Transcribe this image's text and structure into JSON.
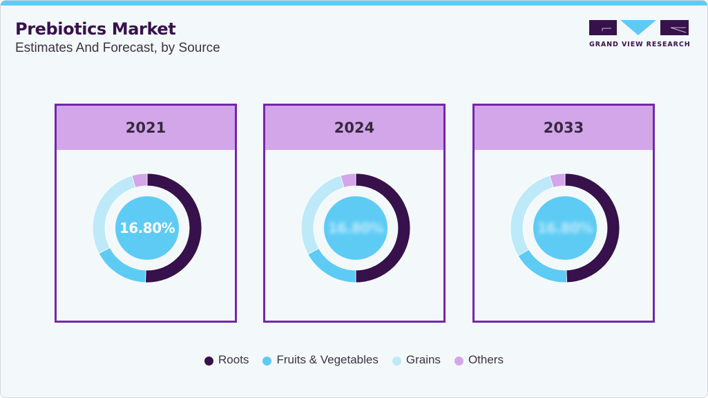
{
  "header": {
    "title": "Prebiotics Market",
    "subtitle": "Estimates And Forecast, by Source"
  },
  "logo": {
    "text": "GRAND VIEW RESEARCH",
    "colors": {
      "dark": "#37114b",
      "accent": "#5ecbf5"
    }
  },
  "colors": {
    "topbar": "#5ecbf5",
    "card_border": "#7327a8",
    "card_header": "#d3a6ea",
    "roots": "#37114b",
    "fruits_vegetables": "#5ecbf5",
    "grains": "#bde9f8",
    "others": "#d3a6ea",
    "center": "#5ecbf5"
  },
  "cards": [
    {
      "year": "2021",
      "center_label": "16.80%",
      "center_visible": true
    },
    {
      "year": "2024",
      "center_label": "16.80%",
      "center_visible": false
    },
    {
      "year": "2033",
      "center_label": "16.80%",
      "center_visible": false
    }
  ],
  "legend": [
    {
      "label": "Roots",
      "color": "#37114b"
    },
    {
      "label": "Fruits & Vegetables",
      "color": "#5ecbf5"
    },
    {
      "label": "Grains",
      "color": "#bde9f8"
    },
    {
      "label": "Others",
      "color": "#d3a6ea"
    }
  ],
  "chart_data": [
    {
      "type": "pie",
      "title": "2021",
      "categories": [
        "Roots",
        "Fruits & Vegetables",
        "Grains",
        "Others"
      ],
      "values": [
        50.5,
        16.8,
        28.2,
        4.5
      ],
      "center_annotation": "16.80%",
      "legend_position": "bottom"
    },
    {
      "type": "pie",
      "title": "2024",
      "categories": [
        "Roots",
        "Fruits & Vegetables",
        "Grains",
        "Others"
      ],
      "values": [
        50.0,
        17.0,
        28.5,
        4.5
      ],
      "center_annotation": "16.80% (blurred)",
      "legend_position": "bottom"
    },
    {
      "type": "pie",
      "title": "2033",
      "categories": [
        "Roots",
        "Fruits & Vegetables",
        "Grains",
        "Others"
      ],
      "values": [
        49.5,
        17.0,
        29.0,
        4.5
      ],
      "center_annotation": "16.80% (blurred)",
      "legend_position": "bottom"
    }
  ]
}
